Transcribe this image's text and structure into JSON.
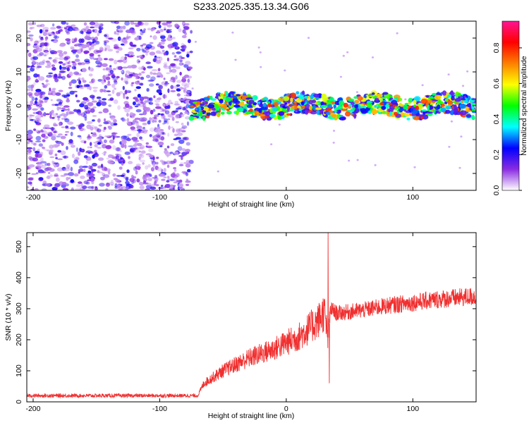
{
  "figure": {
    "title": "S233.2025.335.13.34.G06"
  },
  "chart_data": [
    {
      "type": "heatmap",
      "name": "spectrogram",
      "xlabel": "Height of straight line (km)",
      "ylabel": "Frequency (Hz)",
      "xlim": [
        -205,
        150
      ],
      "ylim": [
        -25,
        25
      ],
      "xticks": [
        -200,
        -100,
        0,
        100
      ],
      "yticks": [
        -20,
        -10,
        0,
        10,
        20
      ],
      "grid": false,
      "noise_region_x": [
        -205,
        -75
      ],
      "signal_band": {
        "x_start": -75,
        "x_end": 150,
        "center_hz": 0,
        "halfwidth_hz": 3
      },
      "colorbar": {
        "label": "Normalized spectral amplitude",
        "range": [
          0,
          0.95
        ],
        "ticks": [
          0.0,
          0.2,
          0.4,
          0.6,
          0.8
        ],
        "tick_labels": [
          "0.0",
          "0.2",
          "0.4",
          "0.6",
          "0.8"
        ],
        "colormap": [
          "#ffffff",
          "#8a2be2",
          "#0000ff",
          "#00ffff",
          "#00ff00",
          "#ffff00",
          "#ff7f00",
          "#ff0000",
          "#ff1493"
        ]
      }
    },
    {
      "type": "line",
      "name": "snr",
      "xlabel": "Height of straight line (km)",
      "ylabel": "SNR (10 * v/v)",
      "xlim": [
        -205,
        150
      ],
      "ylim": [
        0,
        545
      ],
      "xticks": [
        -200,
        -100,
        0,
        100
      ],
      "yticks": [
        0,
        100,
        200,
        300,
        400,
        500
      ],
      "grid": false,
      "color": "#f03030",
      "series": [
        {
          "name": "SNR",
          "x": [
            -205,
            -70,
            -65,
            -50,
            -30,
            -10,
            10,
            25,
            30,
            33,
            35,
            40,
            60,
            80,
            100,
            120,
            150
          ],
          "y": [
            20,
            20,
            60,
            100,
            140,
            170,
            210,
            260,
            290,
            200,
            300,
            285,
            295,
            310,
            320,
            330,
            340
          ]
        }
      ],
      "spikes": [
        {
          "x": 33,
          "y": 545
        },
        {
          "x": 34,
          "y": 60
        }
      ]
    }
  ]
}
